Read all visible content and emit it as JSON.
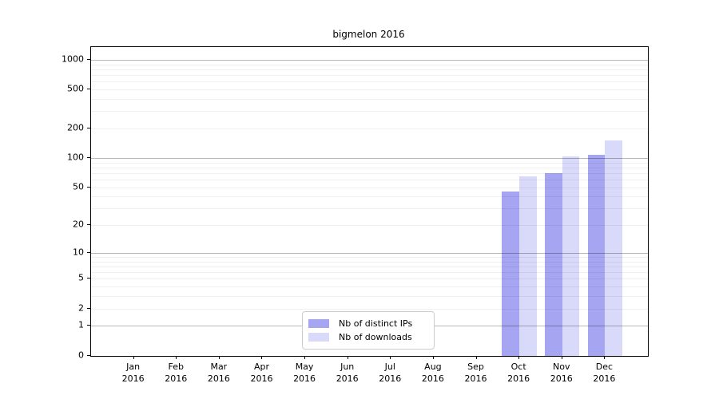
{
  "figure": {
    "title": "bigmelon 2016"
  },
  "chart_data": {
    "type": "bar",
    "title": "bigmelon 2016",
    "categories": [
      "Jan",
      "Feb",
      "Mar",
      "Apr",
      "May",
      "Jun",
      "Jul",
      "Aug",
      "Sep",
      "Oct",
      "Nov",
      "Dec"
    ],
    "category_year": "2016",
    "series": [
      {
        "name": "Nb of distinct IPs",
        "color": "#a5a5f2",
        "values": [
          0,
          0,
          0,
          0,
          0,
          0,
          0,
          0,
          0,
          45,
          70,
          107
        ]
      },
      {
        "name": "Nb of downloads",
        "color": "#d9d9f9",
        "values": [
          0,
          0,
          0,
          0,
          0,
          0,
          0,
          0,
          0,
          65,
          104,
          152
        ]
      }
    ],
    "y_axis": {
      "scale": "log1p",
      "tick_values": [
        0,
        1,
        2,
        5,
        10,
        20,
        50,
        100,
        200,
        500,
        1000
      ],
      "major_gridline_values": [
        1,
        10,
        100,
        1000
      ],
      "ylim": [
        0,
        1300
      ]
    },
    "x_axis": {
      "label_format": "month over year"
    },
    "grid": "on",
    "legend": {
      "position": "lower-center"
    }
  },
  "colors": {
    "bar_distinct_ips": "#a5a5f2",
    "bar_downloads": "#d9d9f9",
    "axis_line": "#000000",
    "legend_border": "#cccccc",
    "major_grid": "#b8b8b8",
    "minor_grid": "#f0f0f0"
  }
}
